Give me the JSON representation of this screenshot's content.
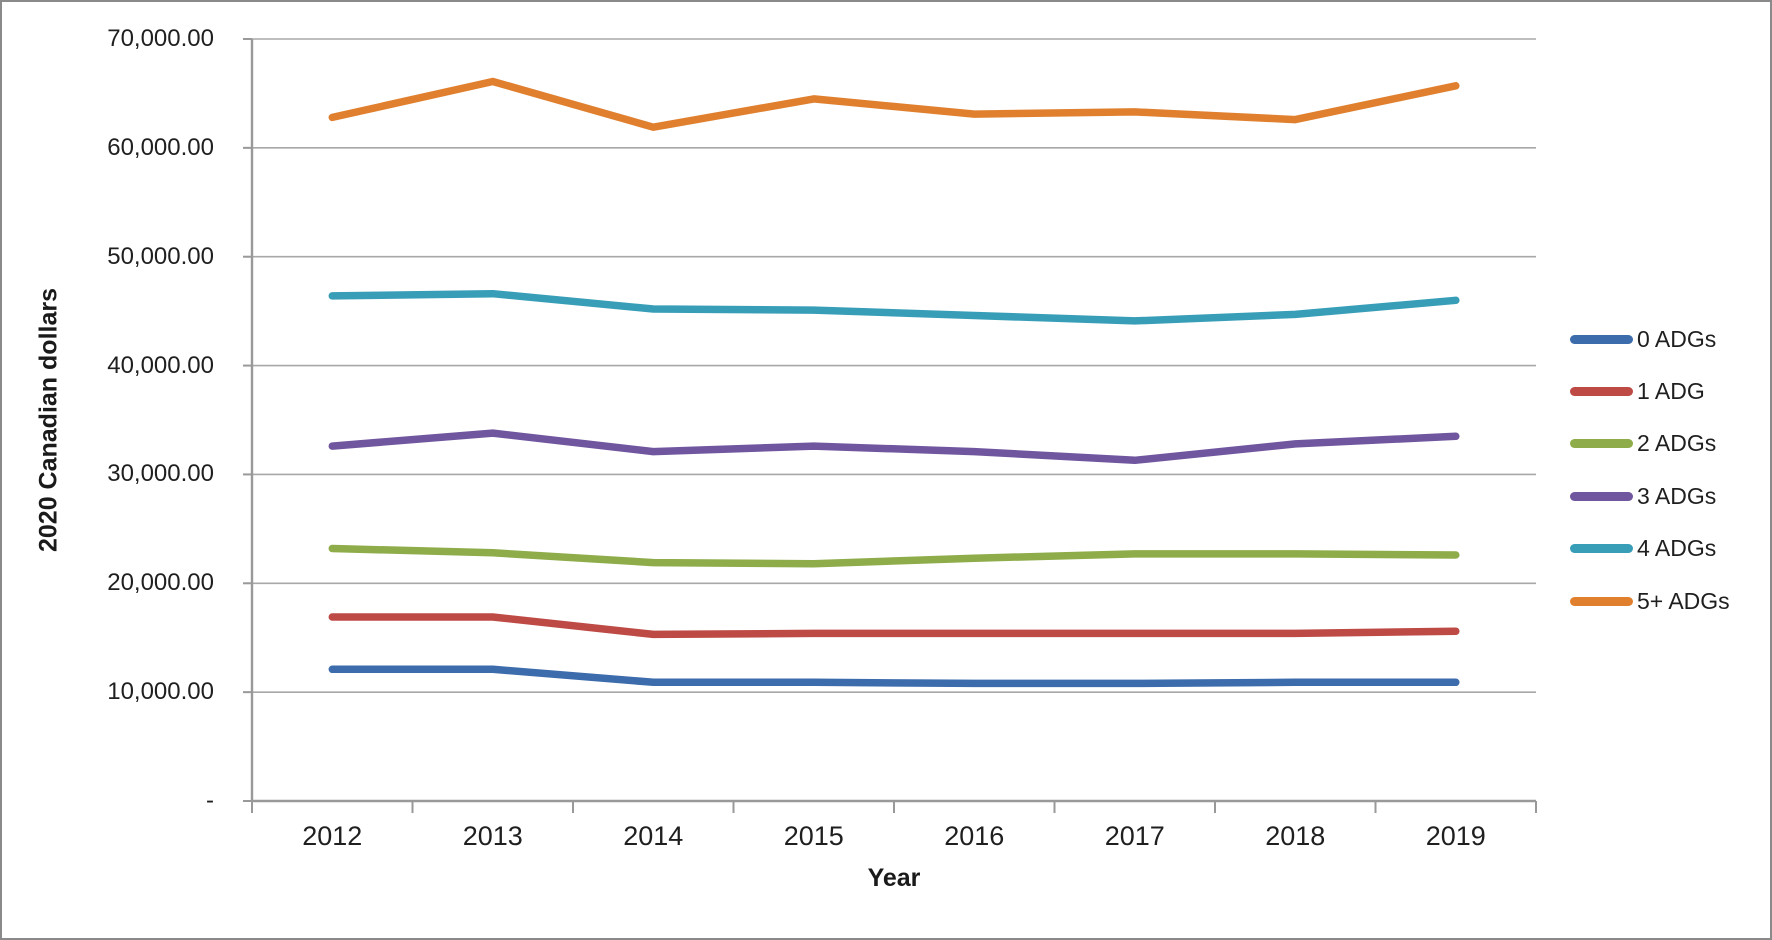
{
  "figure": {
    "y_axis_title": "2020 Canadian dollars",
    "x_axis_title": "Year",
    "y_tick_labels": [
      "-",
      "10,000.00",
      "20,000.00",
      "30,000.00",
      "40,000.00",
      "50,000.00",
      "60,000.00",
      "70,000.00"
    ],
    "gridline_color": "#a8a8a8",
    "axis_color": "#999999",
    "border_color": "#8a8a8a",
    "text_color": "#1f1f1f"
  },
  "chart_data": {
    "type": "line",
    "title": "",
    "xlabel": "Year",
    "ylabel": "2020 Canadian dollars",
    "categories": [
      "2012",
      "2013",
      "2014",
      "2015",
      "2016",
      "2017",
      "2018",
      "2019"
    ],
    "series": [
      {
        "name": "0 ADGs",
        "color": "#3c6cac",
        "values": [
          12100,
          12100,
          10900,
          10900,
          10800,
          10800,
          10900,
          10900
        ]
      },
      {
        "name": "1 ADG",
        "color": "#be4a45",
        "values": [
          16900,
          16900,
          15300,
          15400,
          15400,
          15400,
          15400,
          15600
        ]
      },
      {
        "name": "2 ADGs",
        "color": "#8eac49",
        "values": [
          23200,
          22800,
          21900,
          21800,
          22300,
          22700,
          22700,
          22600
        ]
      },
      {
        "name": "3 ADGs",
        "color": "#70569f",
        "values": [
          32600,
          33800,
          32100,
          32600,
          32100,
          31300,
          32800,
          33500
        ]
      },
      {
        "name": "4 ADGs",
        "color": "#389eb8",
        "values": [
          46400,
          46600,
          45200,
          45100,
          44600,
          44100,
          44700,
          46000
        ]
      },
      {
        "name": "5+ ADGs",
        "color": "#e0802f",
        "values": [
          62800,
          66100,
          61900,
          64500,
          63100,
          63300,
          62600,
          65700
        ]
      }
    ],
    "ylim": [
      0,
      70000
    ],
    "y_tick_step": 10000,
    "grid": true,
    "legend_position": "right",
    "x_tick_marks_between_categories": true
  }
}
